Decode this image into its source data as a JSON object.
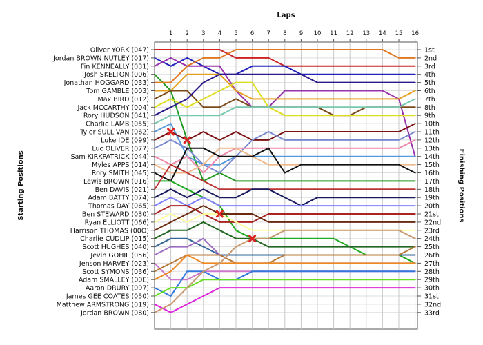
{
  "chart_data": {
    "type": "line",
    "title": "",
    "xlabel": "Laps",
    "ylabel_left": "Starting Positions",
    "ylabel_right": "Finishing Positions",
    "laps": [
      1,
      2,
      3,
      4,
      5,
      6,
      7,
      8,
      9,
      10,
      11,
      12,
      13,
      14,
      15,
      16
    ],
    "x_range": [
      0,
      16
    ],
    "y_range": [
      1,
      33
    ],
    "grid": true,
    "starting_labels": [
      "Oliver YORK (047)",
      "Jordan BROWN NUTLEY (017)",
      "Fin KENNEALLY (031)",
      "Josh SKELTON (006)",
      "Jonathan HOGGARD (033)",
      "Tom GAMBLE (003)",
      "Max BIRD (012)",
      "Jack MCCARTHY (004)",
      "Rory HUDSON (041)",
      "Charlie LAMB (055)",
      "Tyler SULLIVAN (062)",
      "Luke IDE (099)",
      "Luc OLIVER (077)",
      "Sam KIRKPATRICK (044)",
      "Myles APPS (014)",
      "Rory SMITH (045)",
      "Lewis BROWN (016)",
      "Ben DAVIS (021)",
      "Adam BATTY (074)",
      "Thomas DAY (065)",
      "Ben STEWARD (030)",
      "Ryan ELLIOTT (066)",
      "Harrison THOMAS (00O)",
      "Charlie CUDLIP (015)",
      "Scott HUGHES (040)",
      "Jevin GOHIL (056)",
      "Jenson HARVEY (023)",
      "Scott SYMONS (036)",
      "Adam SMALLEY (00E)",
      "Aaron DRURY (097)",
      "James GEE COATES (050)",
      "Matthew ARMSTRONG (019)",
      "Jordan BROWN (080)"
    ],
    "finishing_labels": [
      "1st",
      "2nd",
      "3rd",
      "4th",
      "5th",
      "6th",
      "7th",
      "8th",
      "9th",
      "10th",
      "11th",
      "12th",
      "13th",
      "14th",
      "15th",
      "16th",
      "17th",
      "18th",
      "19th",
      "20th",
      "21st",
      "22nd",
      "23rd",
      "24th",
      "25th",
      "26th",
      "27th",
      "28th",
      "29th",
      "30th",
      "31st",
      "32nd",
      "33rd"
    ],
    "series": [
      {
        "color": "#cc2222",
        "values": [
          1,
          1,
          1,
          1,
          1,
          2,
          2,
          2,
          3,
          3,
          3,
          3,
          3,
          3,
          3,
          3,
          3
        ]
      },
      {
        "color": "#2222bb",
        "values": [
          2,
          3,
          2,
          3,
          4,
          4,
          3,
          3,
          3,
          4,
          4,
          4,
          4,
          4,
          4,
          4,
          4
        ]
      },
      {
        "color": "#9933aa",
        "values": [
          3,
          2,
          3,
          3,
          3,
          6,
          8,
          8,
          6,
          6,
          6,
          6,
          6,
          6,
          6,
          7,
          14
        ]
      },
      {
        "color": "#229922",
        "values": [
          4,
          6,
          12,
          17,
          16,
          17,
          17,
          17,
          17,
          17,
          17,
          17,
          17,
          17,
          17,
          17,
          17
        ]
      },
      {
        "color": "#e07820",
        "values": [
          5,
          5,
          3,
          2,
          2,
          1,
          1,
          1,
          1,
          1,
          1,
          1,
          1,
          1,
          1,
          2,
          2
        ]
      },
      {
        "color": "#e6a020",
        "values": [
          6,
          6,
          4,
          4,
          4,
          6,
          7,
          7,
          7,
          7,
          7,
          7,
          7,
          7,
          7,
          7,
          6
        ]
      },
      {
        "color": "#7a4a1a",
        "values": [
          7,
          6,
          6,
          8,
          8,
          7,
          8,
          8,
          8,
          8,
          8,
          9,
          9,
          8,
          8,
          8,
          8
        ]
      },
      {
        "color": "#dddd22",
        "values": [
          8,
          7,
          8,
          7,
          6,
          5,
          5,
          8,
          9,
          9,
          9,
          9,
          9,
          9,
          9,
          9,
          9
        ]
      },
      {
        "color": "#2a1a8a",
        "values": [
          9,
          8,
          7,
          5,
          4,
          4,
          4,
          4,
          4,
          4,
          5,
          5,
          5,
          5,
          5,
          5,
          5
        ]
      },
      {
        "color": "#77c8b0",
        "values": [
          10,
          9,
          9,
          9,
          9,
          8,
          8,
          8,
          8,
          8,
          8,
          8,
          8,
          8,
          8,
          8,
          7
        ]
      },
      {
        "color": "#5599dd",
        "values": [
          11,
          10,
          14,
          15,
          15,
          14,
          14,
          14,
          14,
          14,
          14,
          14,
          14,
          14,
          14,
          14,
          14
        ]
      },
      {
        "color": "#7a1010",
        "values": [
          12,
          11,
          12,
          11,
          12,
          11,
          12,
          12,
          11,
          11,
          11,
          11,
          11,
          11,
          11,
          11,
          10
        ]
      },
      {
        "color": "#7a8ad0",
        "values": [
          13,
          12,
          13,
          15,
          16,
          14,
          12,
          11,
          12,
          12,
          12,
          12,
          12,
          12,
          12,
          12,
          11
        ]
      },
      {
        "color": "#ee88aa",
        "values": [
          14,
          15,
          14,
          16,
          14,
          13,
          13,
          13,
          13,
          13,
          13,
          13,
          13,
          13,
          13,
          13,
          12
        ]
      },
      {
        "color": "#f0b888",
        "values": [
          15,
          16,
          16,
          15,
          13,
          13,
          14,
          15,
          15,
          15,
          15,
          15,
          15,
          15,
          15,
          15,
          15
        ]
      },
      {
        "color": "#111111",
        "values": [
          16,
          17,
          13,
          13,
          14,
          14,
          14,
          13,
          16,
          15,
          15,
          15,
          15,
          15,
          15,
          15,
          16
        ]
      },
      {
        "color": "#22aa22",
        "values": [
          17,
          17,
          18,
          19,
          20,
          23,
          24,
          24,
          24,
          24,
          24,
          24,
          25,
          26,
          26,
          26,
          27
        ]
      },
      {
        "color": "#bb3333",
        "values": [
          18,
          15,
          16,
          17,
          18,
          18,
          18,
          18,
          18,
          18,
          18,
          18,
          18,
          18,
          18,
          18,
          18
        ]
      },
      {
        "color": "#1a1a60",
        "values": [
          19,
          18,
          19,
          18,
          19,
          19,
          18,
          18,
          19,
          20,
          19,
          19,
          19,
          19,
          19,
          19,
          19
        ]
      },
      {
        "color": "#8080ff",
        "values": [
          20,
          19,
          20,
          19,
          20,
          20,
          20,
          20,
          20,
          20,
          20,
          20,
          20,
          20,
          20,
          20,
          20
        ]
      },
      {
        "color": "#aa2222",
        "values": [
          21,
          20,
          20,
          21,
          22,
          22,
          22,
          21,
          21,
          21,
          21,
          21,
          21,
          21,
          21,
          21,
          21
        ]
      },
      {
        "color": "#ffffa0",
        "values": [
          22,
          21,
          22,
          21,
          21,
          22,
          23,
          23,
          23,
          23,
          23,
          23,
          23,
          23,
          23,
          23,
          23
        ]
      },
      {
        "color": "#6a2a10",
        "values": [
          23,
          22,
          21,
          20,
          21,
          21,
          21,
          22,
          22,
          22,
          22,
          22,
          22,
          22,
          22,
          22,
          22
        ]
      },
      {
        "color": "#226622",
        "values": [
          24,
          23,
          23,
          22,
          23,
          24,
          24,
          25,
          25,
          25,
          25,
          25,
          25,
          25,
          25,
          25,
          25
        ]
      },
      {
        "color": "#336699",
        "values": [
          25,
          24,
          24,
          25,
          26,
          26,
          26,
          26,
          26,
          26,
          26,
          26,
          26,
          26,
          26,
          26,
          26
        ]
      },
      {
        "color": "#9b6cc0",
        "values": [
          26,
          25,
          25,
          24,
          26,
          27,
          27,
          27,
          27,
          27,
          27,
          27,
          27,
          27,
          27,
          27,
          27
        ]
      },
      {
        "color": "#cc77cc",
        "values": [
          27,
          29,
          29,
          28,
          28,
          28,
          28,
          28,
          28,
          28,
          28,
          28,
          28,
          28,
          28,
          28,
          28
        ]
      },
      {
        "color": "#b87a3a",
        "values": [
          28,
          27,
          26,
          26,
          26,
          27,
          27,
          27,
          26,
          26,
          26,
          26,
          26,
          26,
          26,
          26,
          25
        ]
      },
      {
        "color": "#ee8822",
        "values": [
          29,
          28,
          26,
          27,
          27,
          27,
          27,
          27,
          27,
          27,
          27,
          27,
          27,
          27,
          27,
          27,
          27
        ]
      },
      {
        "color": "#3377dd",
        "values": [
          30,
          31,
          28,
          28,
          29,
          29,
          28,
          28,
          28,
          28,
          28,
          28,
          28,
          28,
          28,
          28,
          28
        ]
      },
      {
        "color": "#66dd22",
        "values": [
          31,
          30,
          30,
          29,
          29,
          29,
          29,
          29,
          29,
          29,
          29,
          29,
          29,
          29,
          29,
          29,
          29
        ]
      },
      {
        "color": "#dd22dd",
        "values": [
          32,
          33,
          32,
          31,
          30,
          30,
          30,
          30,
          30,
          30,
          30,
          30,
          30,
          30,
          30,
          30,
          30
        ]
      },
      {
        "color": "#c89870",
        "values": [
          33,
          32,
          30,
          28,
          27,
          25,
          24,
          24,
          23,
          23,
          23,
          23,
          23,
          23,
          23,
          23,
          24
        ]
      }
    ],
    "markers": [
      {
        "symbol": "x",
        "color": "#dd2222",
        "x": 1,
        "y": 11
      },
      {
        "symbol": "x",
        "color": "#dd2222",
        "x": 2,
        "y": 12
      },
      {
        "symbol": "x",
        "color": "#dd2222",
        "x": 4,
        "y": 21
      },
      {
        "symbol": "x",
        "color": "#dd2222",
        "x": 6,
        "y": 24
      }
    ]
  }
}
